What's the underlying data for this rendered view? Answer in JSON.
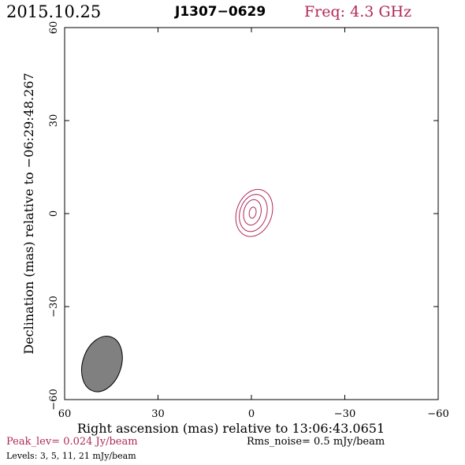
{
  "header": {
    "date": "2015.10.25",
    "source": "J1307−0629",
    "freq": "Freq: 4.3 GHz"
  },
  "footer": {
    "peak": "Peak_lev=  0.024 Jy/beam",
    "rms": "Rms_noise=  0.5 mJy/beam",
    "levels": "Levels:   3,   5,  11,  21 mJy/beam"
  },
  "colors": {
    "accent": "#b0285a",
    "contour": "#b0285a",
    "beam_fill": "#808080",
    "axis": "#000000"
  },
  "chart_data": {
    "type": "contour",
    "xlabel": "Right ascension (mas) relative to 13:06:43.0651",
    "ylabel": "Declination (mas) relative to −06:29:48.267",
    "xlim": [
      60,
      -60
    ],
    "ylim": [
      -60,
      60
    ],
    "xticks": [
      60,
      30,
      0,
      -30,
      -60
    ],
    "yticks": [
      -60,
      -30,
      0,
      30,
      60
    ],
    "xtick_labels": [
      "60",
      "30",
      "0",
      "−30",
      "−60"
    ],
    "ytick_labels": [
      "−60",
      "−30",
      "0",
      "30",
      "60"
    ],
    "grid": false,
    "contours": [
      {
        "level": 3,
        "unit": "mJy/beam",
        "center": [
          -0.9,
          0.2
        ],
        "semi_x": 5.8,
        "semi_y": 7.6,
        "skew": 1.2
      },
      {
        "level": 5,
        "unit": "mJy/beam",
        "center": [
          -0.6,
          0.2
        ],
        "semi_x": 4.4,
        "semi_y": 6.0,
        "skew": 0.9
      },
      {
        "level": 11,
        "unit": "mJy/beam",
        "center": [
          -0.3,
          0.4
        ],
        "semi_x": 2.8,
        "semi_y": 4.1,
        "skew": 0.5
      },
      {
        "level": 21,
        "unit": "mJy/beam",
        "center": [
          -0.4,
          0.3
        ],
        "semi_x": 1.1,
        "semi_y": 1.8,
        "skew": 0.2
      }
    ],
    "beam": {
      "center": [
        48,
        -48.5
      ],
      "major": 9.2,
      "minor": 6.2,
      "pa_deg": 18
    }
  }
}
